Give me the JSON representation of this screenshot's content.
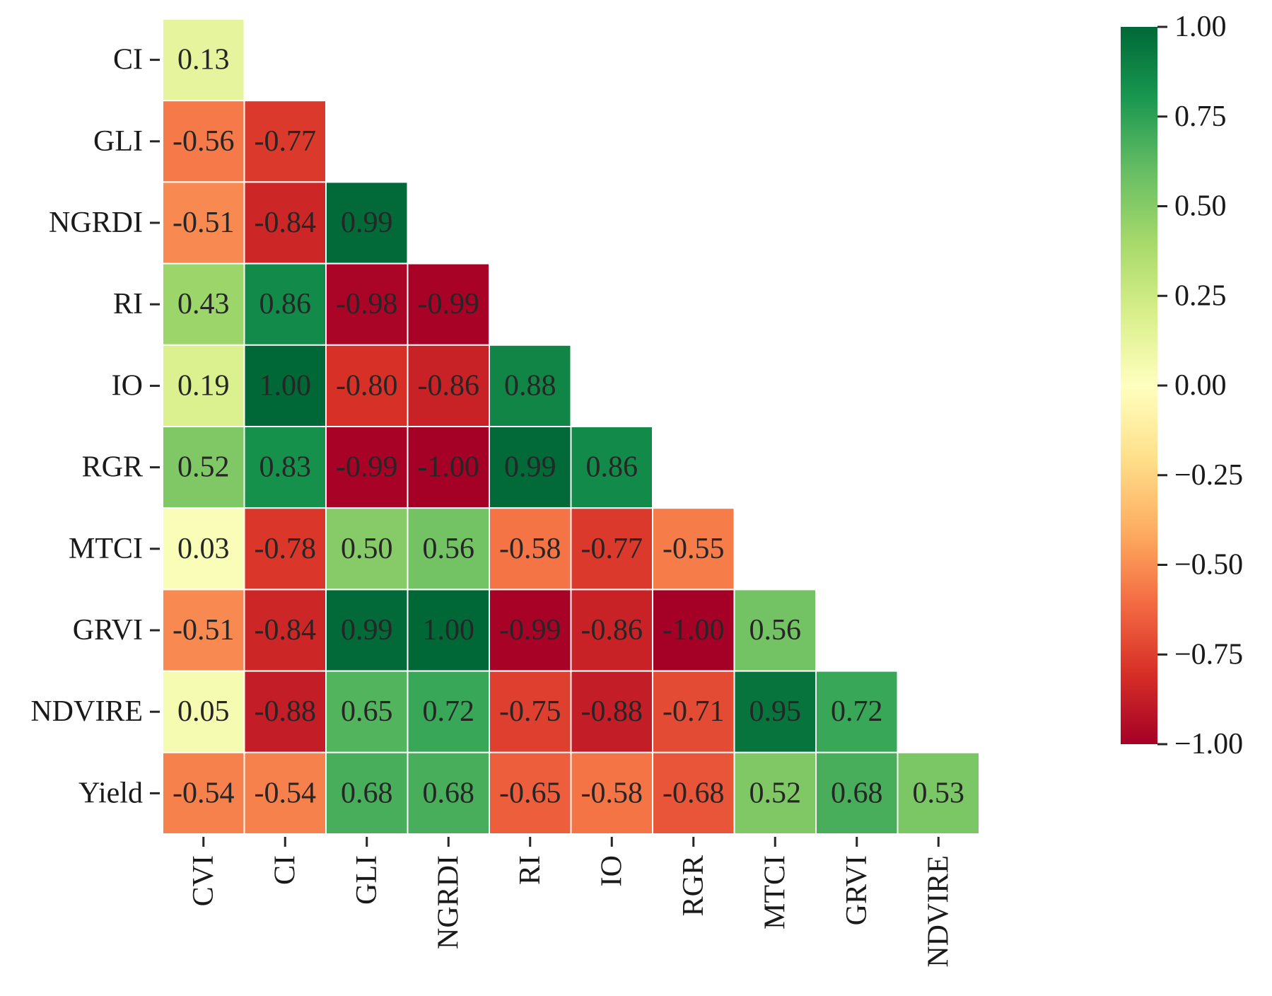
{
  "chart_data": {
    "type": "heatmap",
    "variant": "lower-triangular correlation matrix",
    "row_labels": [
      "CI",
      "GLI",
      "NGRDI",
      "RI",
      "IO",
      "RGR",
      "MTCI",
      "GRVI",
      "NDVIRE",
      "Yield"
    ],
    "col_labels": [
      "CVI",
      "CI",
      "GLI",
      "NGRDI",
      "RI",
      "IO",
      "RGR",
      "MTCI",
      "GRVI",
      "NDVIRE"
    ],
    "values": [
      [
        0.13
      ],
      [
        -0.56,
        -0.77
      ],
      [
        -0.51,
        -0.84,
        0.99
      ],
      [
        0.43,
        0.86,
        -0.98,
        -0.99
      ],
      [
        0.19,
        1.0,
        -0.8,
        -0.86,
        0.88
      ],
      [
        0.52,
        0.83,
        -0.99,
        -1.0,
        0.99,
        0.86
      ],
      [
        0.03,
        -0.78,
        0.5,
        0.56,
        -0.58,
        -0.77,
        -0.55
      ],
      [
        -0.51,
        -0.84,
        0.99,
        1.0,
        -0.99,
        -0.86,
        -1.0,
        0.56
      ],
      [
        0.05,
        -0.88,
        0.65,
        0.72,
        -0.75,
        -0.88,
        -0.71,
        0.95,
        0.72
      ],
      [
        -0.54,
        -0.54,
        0.68,
        0.68,
        -0.65,
        -0.58,
        -0.68,
        0.52,
        0.68,
        0.53
      ]
    ],
    "value_labels": [
      [
        "0.13"
      ],
      [
        "-0.56",
        "-0.77"
      ],
      [
        "-0.51",
        "-0.84",
        "0.99"
      ],
      [
        "0.43",
        "0.86",
        "-0.98",
        "-0.99"
      ],
      [
        "0.19",
        "1.00",
        "-0.80",
        "-0.86",
        "0.88"
      ],
      [
        "0.52",
        "0.83",
        "-0.99",
        "-1.00",
        "0.99",
        "0.86"
      ],
      [
        "0.03",
        "-0.78",
        "0.50",
        "0.56",
        "-0.58",
        "-0.77",
        "-0.55"
      ],
      [
        "-0.51",
        "-0.84",
        "0.99",
        "1.00",
        "-0.99",
        "-0.86",
        "-1.00",
        "0.56"
      ],
      [
        "0.05",
        "-0.88",
        "0.65",
        "0.72",
        "-0.75",
        "-0.88",
        "-0.71",
        "0.95",
        "0.72"
      ],
      [
        "-0.54",
        "-0.54",
        "0.68",
        "0.68",
        "-0.65",
        "-0.58",
        "-0.68",
        "0.52",
        "0.68",
        "0.53"
      ]
    ],
    "colormap": "RdYlGn",
    "vmin": -1.0,
    "vmax": 1.0,
    "colorbar": {
      "ticks": [
        1.0,
        0.75,
        0.5,
        0.25,
        0.0,
        -0.25,
        -0.5,
        -0.75,
        -1.0
      ],
      "tick_labels": [
        "1.00",
        "0.75",
        "0.50",
        "0.25",
        "0.00",
        "−0.25",
        "−0.50",
        "−0.75",
        "−1.00"
      ],
      "placement": "right"
    },
    "title": "",
    "xlabel": "",
    "ylabel": ""
  }
}
